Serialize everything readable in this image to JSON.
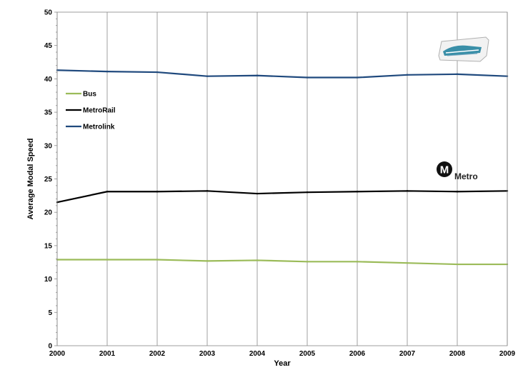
{
  "chart_data": {
    "type": "line",
    "xlabel": "Year",
    "ylabel": "Average Modal Speed",
    "xlim": [
      2000,
      2009
    ],
    "ylim": [
      0,
      50
    ],
    "x": [
      2000,
      2001,
      2002,
      2003,
      2004,
      2005,
      2006,
      2007,
      2008,
      2009
    ],
    "x_tick_labels": [
      "2000",
      "2001",
      "2002",
      "2003",
      "2004",
      "2005",
      "2006",
      "2007",
      "2008",
      "2009"
    ],
    "y_tick_labels": [
      "0",
      "5",
      "10",
      "15",
      "20",
      "25",
      "30",
      "35",
      "40",
      "45",
      "50"
    ],
    "y_ticks": [
      0,
      5,
      10,
      15,
      20,
      25,
      30,
      35,
      40,
      45,
      50
    ],
    "grid": "vertical",
    "legend_position": "top-left",
    "series": [
      {
        "name": "Bus",
        "color": "#9bbb59",
        "values": [
          12.9,
          12.9,
          12.9,
          12.7,
          12.8,
          12.6,
          12.6,
          12.4,
          12.2,
          12.2
        ]
      },
      {
        "name": "MetroRail",
        "color": "#000000",
        "values": [
          21.5,
          23.1,
          23.1,
          23.2,
          22.8,
          23.0,
          23.1,
          23.2,
          23.1,
          23.2
        ]
      },
      {
        "name": "Metrolink",
        "color": "#1f497d",
        "values": [
          41.3,
          41.1,
          41.0,
          40.4,
          40.5,
          40.2,
          40.2,
          40.6,
          40.7,
          40.4
        ]
      }
    ]
  },
  "logos": {
    "metro_letter": "M",
    "metro_text": "Metro",
    "metrolink_icon": "metrolink-train-logo"
  }
}
